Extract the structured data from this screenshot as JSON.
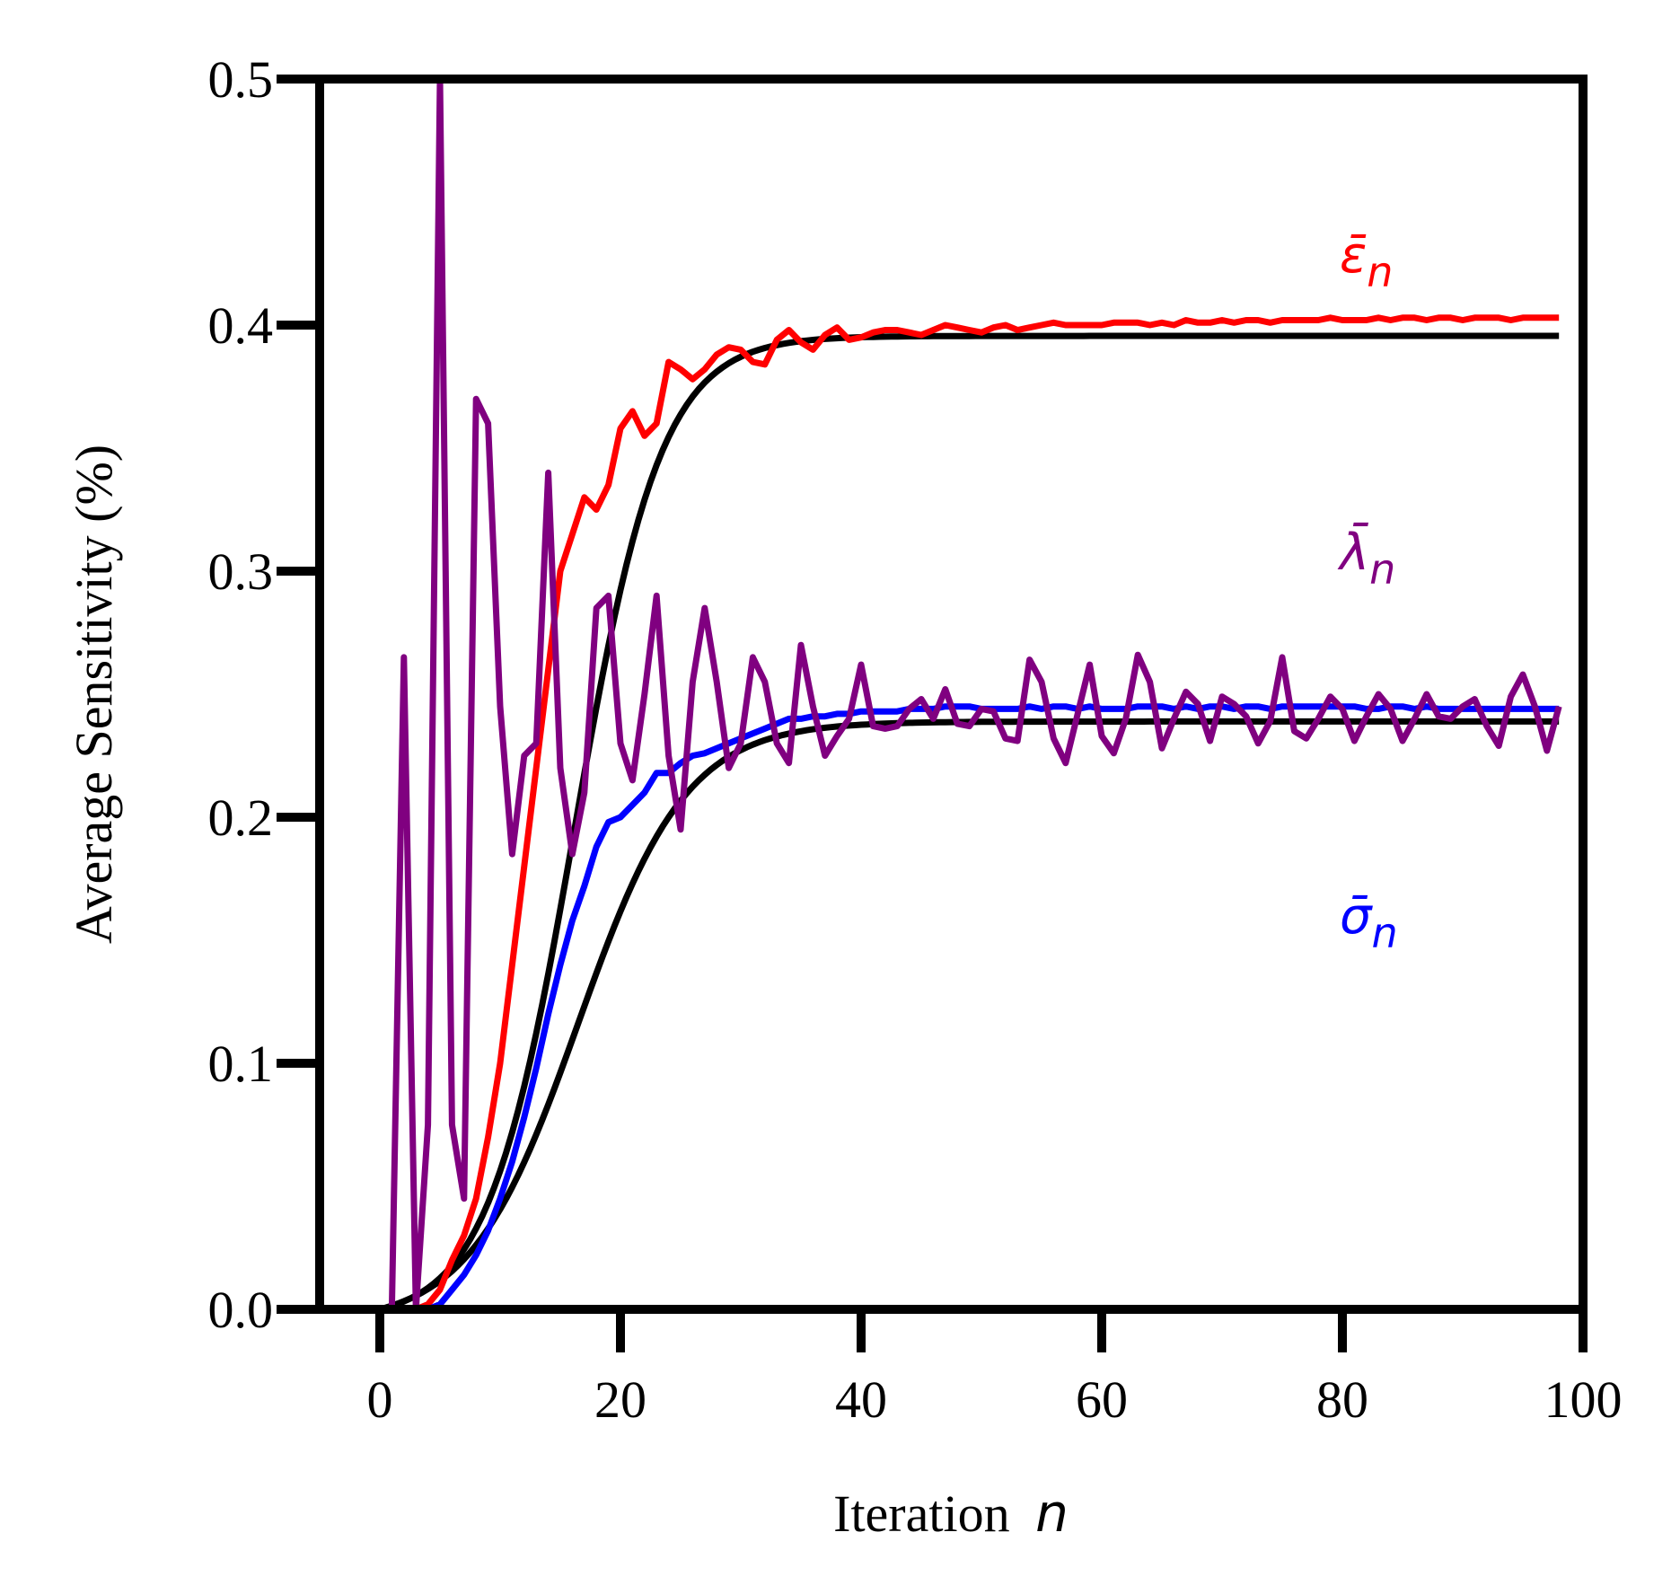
{
  "chart_data": {
    "type": "line",
    "title": "",
    "xlabel": "Iteration",
    "xlabel_var": "n",
    "ylabel": "Average Sensitivity (%)",
    "xlim": [
      -5,
      100
    ],
    "ylim": [
      0,
      0.5
    ],
    "xticks": [
      0,
      20,
      40,
      60,
      80,
      100
    ],
    "xtick_labels": [
      "0",
      "20",
      "40",
      "60",
      "80",
      "100"
    ],
    "yticks": [
      0.0,
      0.1,
      0.2,
      0.3,
      0.4,
      0.5
    ],
    "ytick_labels": [
      "0.0",
      "0.1",
      "0.2",
      "0.3",
      "0.4",
      "0.5"
    ],
    "grid": false,
    "series": [
      {
        "name": "epsilon_bar_n",
        "label": "ε̄",
        "sub": "n",
        "color": "#ff0000",
        "fit": {
          "plateau": 0.4,
          "midpoint": 16.2,
          "scale": 3.6
        },
        "x": [
          0,
          1,
          2,
          3,
          4,
          5,
          6,
          7,
          8,
          9,
          10,
          11,
          12,
          13,
          14,
          15,
          16,
          17,
          18,
          19,
          20,
          21,
          22,
          23,
          24,
          25,
          26,
          27,
          28,
          29,
          30,
          31,
          32,
          33,
          34,
          35,
          36,
          37,
          38,
          39,
          40,
          41,
          42,
          43,
          44,
          45,
          46,
          47,
          48,
          49,
          50,
          51,
          52,
          53,
          54,
          55,
          56,
          57,
          58,
          59,
          60,
          61,
          62,
          63,
          64,
          65,
          66,
          67,
          68,
          69,
          70,
          71,
          72,
          73,
          74,
          75,
          76,
          77,
          78,
          79,
          80,
          81,
          82,
          83,
          84,
          85,
          86,
          87,
          88,
          89,
          90,
          91,
          92,
          93,
          94,
          95,
          96,
          97,
          98
        ],
        "values": [
          0,
          0,
          0,
          0,
          0.002,
          0.008,
          0.02,
          0.03,
          0.045,
          0.07,
          0.1,
          0.14,
          0.18,
          0.22,
          0.26,
          0.3,
          0.315,
          0.33,
          0.325,
          0.335,
          0.358,
          0.365,
          0.355,
          0.36,
          0.385,
          0.382,
          0.378,
          0.382,
          0.388,
          0.391,
          0.39,
          0.385,
          0.384,
          0.394,
          0.398,
          0.393,
          0.39,
          0.396,
          0.399,
          0.394,
          0.395,
          0.397,
          0.398,
          0.398,
          0.397,
          0.396,
          0.398,
          0.4,
          0.399,
          0.398,
          0.397,
          0.399,
          0.4,
          0.398,
          0.399,
          0.4,
          0.401,
          0.4,
          0.4,
          0.4,
          0.4,
          0.401,
          0.401,
          0.401,
          0.4,
          0.401,
          0.4,
          0.402,
          0.401,
          0.401,
          0.402,
          0.401,
          0.402,
          0.402,
          0.401,
          0.402,
          0.402,
          0.402,
          0.402,
          0.403,
          0.402,
          0.402,
          0.402,
          0.403,
          0.402,
          0.403,
          0.403,
          0.402,
          0.403,
          0.403,
          0.402,
          0.403,
          0.403,
          0.403,
          0.402,
          0.403,
          0.403,
          0.403,
          0.403
        ]
      },
      {
        "name": "sigma_bar_n",
        "label": "σ̄",
        "sub": "n",
        "color": "#0000ff",
        "fit": {
          "plateau": 0.245,
          "midpoint": 16.5,
          "scale": 4.5
        },
        "x": [
          0,
          1,
          2,
          3,
          4,
          5,
          6,
          7,
          8,
          9,
          10,
          11,
          12,
          13,
          14,
          15,
          16,
          17,
          18,
          19,
          20,
          21,
          22,
          23,
          24,
          25,
          26,
          27,
          28,
          29,
          30,
          31,
          32,
          33,
          34,
          35,
          36,
          37,
          38,
          39,
          40,
          41,
          42,
          43,
          44,
          45,
          46,
          47,
          48,
          49,
          50,
          51,
          52,
          53,
          54,
          55,
          56,
          57,
          58,
          59,
          60,
          61,
          62,
          63,
          64,
          65,
          66,
          67,
          68,
          69,
          70,
          71,
          72,
          73,
          74,
          75,
          76,
          77,
          78,
          79,
          80,
          81,
          82,
          83,
          84,
          85,
          86,
          87,
          88,
          89,
          90,
          91,
          92,
          93,
          94,
          95,
          96,
          97,
          98
        ],
        "values": [
          0,
          0,
          0,
          0,
          0,
          0.002,
          0.008,
          0.014,
          0.022,
          0.032,
          0.045,
          0.06,
          0.078,
          0.098,
          0.12,
          0.14,
          0.158,
          0.172,
          0.188,
          0.198,
          0.2,
          0.205,
          0.21,
          0.218,
          0.218,
          0.222,
          0.225,
          0.226,
          0.228,
          0.23,
          0.232,
          0.234,
          0.236,
          0.238,
          0.24,
          0.24,
          0.241,
          0.241,
          0.242,
          0.242,
          0.243,
          0.243,
          0.243,
          0.243,
          0.244,
          0.244,
          0.244,
          0.245,
          0.245,
          0.245,
          0.244,
          0.244,
          0.244,
          0.244,
          0.245,
          0.244,
          0.245,
          0.245,
          0.244,
          0.245,
          0.244,
          0.244,
          0.244,
          0.245,
          0.245,
          0.245,
          0.244,
          0.245,
          0.244,
          0.245,
          0.245,
          0.244,
          0.245,
          0.245,
          0.244,
          0.245,
          0.245,
          0.245,
          0.245,
          0.245,
          0.245,
          0.245,
          0.244,
          0.244,
          0.245,
          0.245,
          0.244,
          0.245,
          0.244,
          0.244,
          0.244,
          0.244,
          0.244,
          0.244,
          0.244,
          0.244,
          0.244,
          0.244,
          0.244
        ]
      },
      {
        "name": "lambda_bar_n",
        "label": "λ̄",
        "sub": "n",
        "color": "#800080",
        "x": [
          0,
          1,
          2,
          3,
          4,
          5,
          6,
          7,
          8,
          9,
          10,
          11,
          12,
          13,
          14,
          15,
          16,
          17,
          18,
          19,
          20,
          21,
          22,
          23,
          24,
          25,
          26,
          27,
          28,
          29,
          30,
          31,
          32,
          33,
          34,
          35,
          36,
          37,
          38,
          39,
          40,
          41,
          42,
          43,
          44,
          45,
          46,
          47,
          48,
          49,
          50,
          51,
          52,
          53,
          54,
          55,
          56,
          57,
          58,
          59,
          60,
          61,
          62,
          63,
          64,
          65,
          66,
          67,
          68,
          69,
          70,
          71,
          72,
          73,
          74,
          75,
          76,
          77,
          78,
          79,
          80,
          81,
          82,
          83,
          84,
          85,
          86,
          87,
          88,
          89,
          90,
          91,
          92,
          93,
          94,
          95,
          96,
          97,
          98
        ],
        "values": [
          0,
          0,
          0.265,
          0,
          0.075,
          0.5,
          0.075,
          0.045,
          0.37,
          0.36,
          0.245,
          0.185,
          0.225,
          0.23,
          0.34,
          0.22,
          0.185,
          0.21,
          0.285,
          0.29,
          0.23,
          0.215,
          0.25,
          0.29,
          0.225,
          0.195,
          0.255,
          0.285,
          0.255,
          0.22,
          0.23,
          0.265,
          0.255,
          0.23,
          0.222,
          0.27,
          0.245,
          0.225,
          0.233,
          0.24,
          0.262,
          0.237,
          0.236,
          0.237,
          0.244,
          0.248,
          0.24,
          0.252,
          0.238,
          0.237,
          0.244,
          0.243,
          0.232,
          0.231,
          0.264,
          0.255,
          0.232,
          0.222,
          0.242,
          0.262,
          0.233,
          0.226,
          0.24,
          0.266,
          0.255,
          0.228,
          0.24,
          0.251,
          0.246,
          0.231,
          0.249,
          0.246,
          0.241,
          0.23,
          0.239,
          0.265,
          0.235,
          0.232,
          0.24,
          0.249,
          0.244,
          0.231,
          0.241,
          0.25,
          0.244,
          0.231,
          0.24,
          0.25,
          0.241,
          0.24,
          0.245,
          0.248,
          0.237,
          0.229,
          0.249,
          0.258,
          0.245,
          0.227,
          0.245
        ]
      }
    ]
  }
}
